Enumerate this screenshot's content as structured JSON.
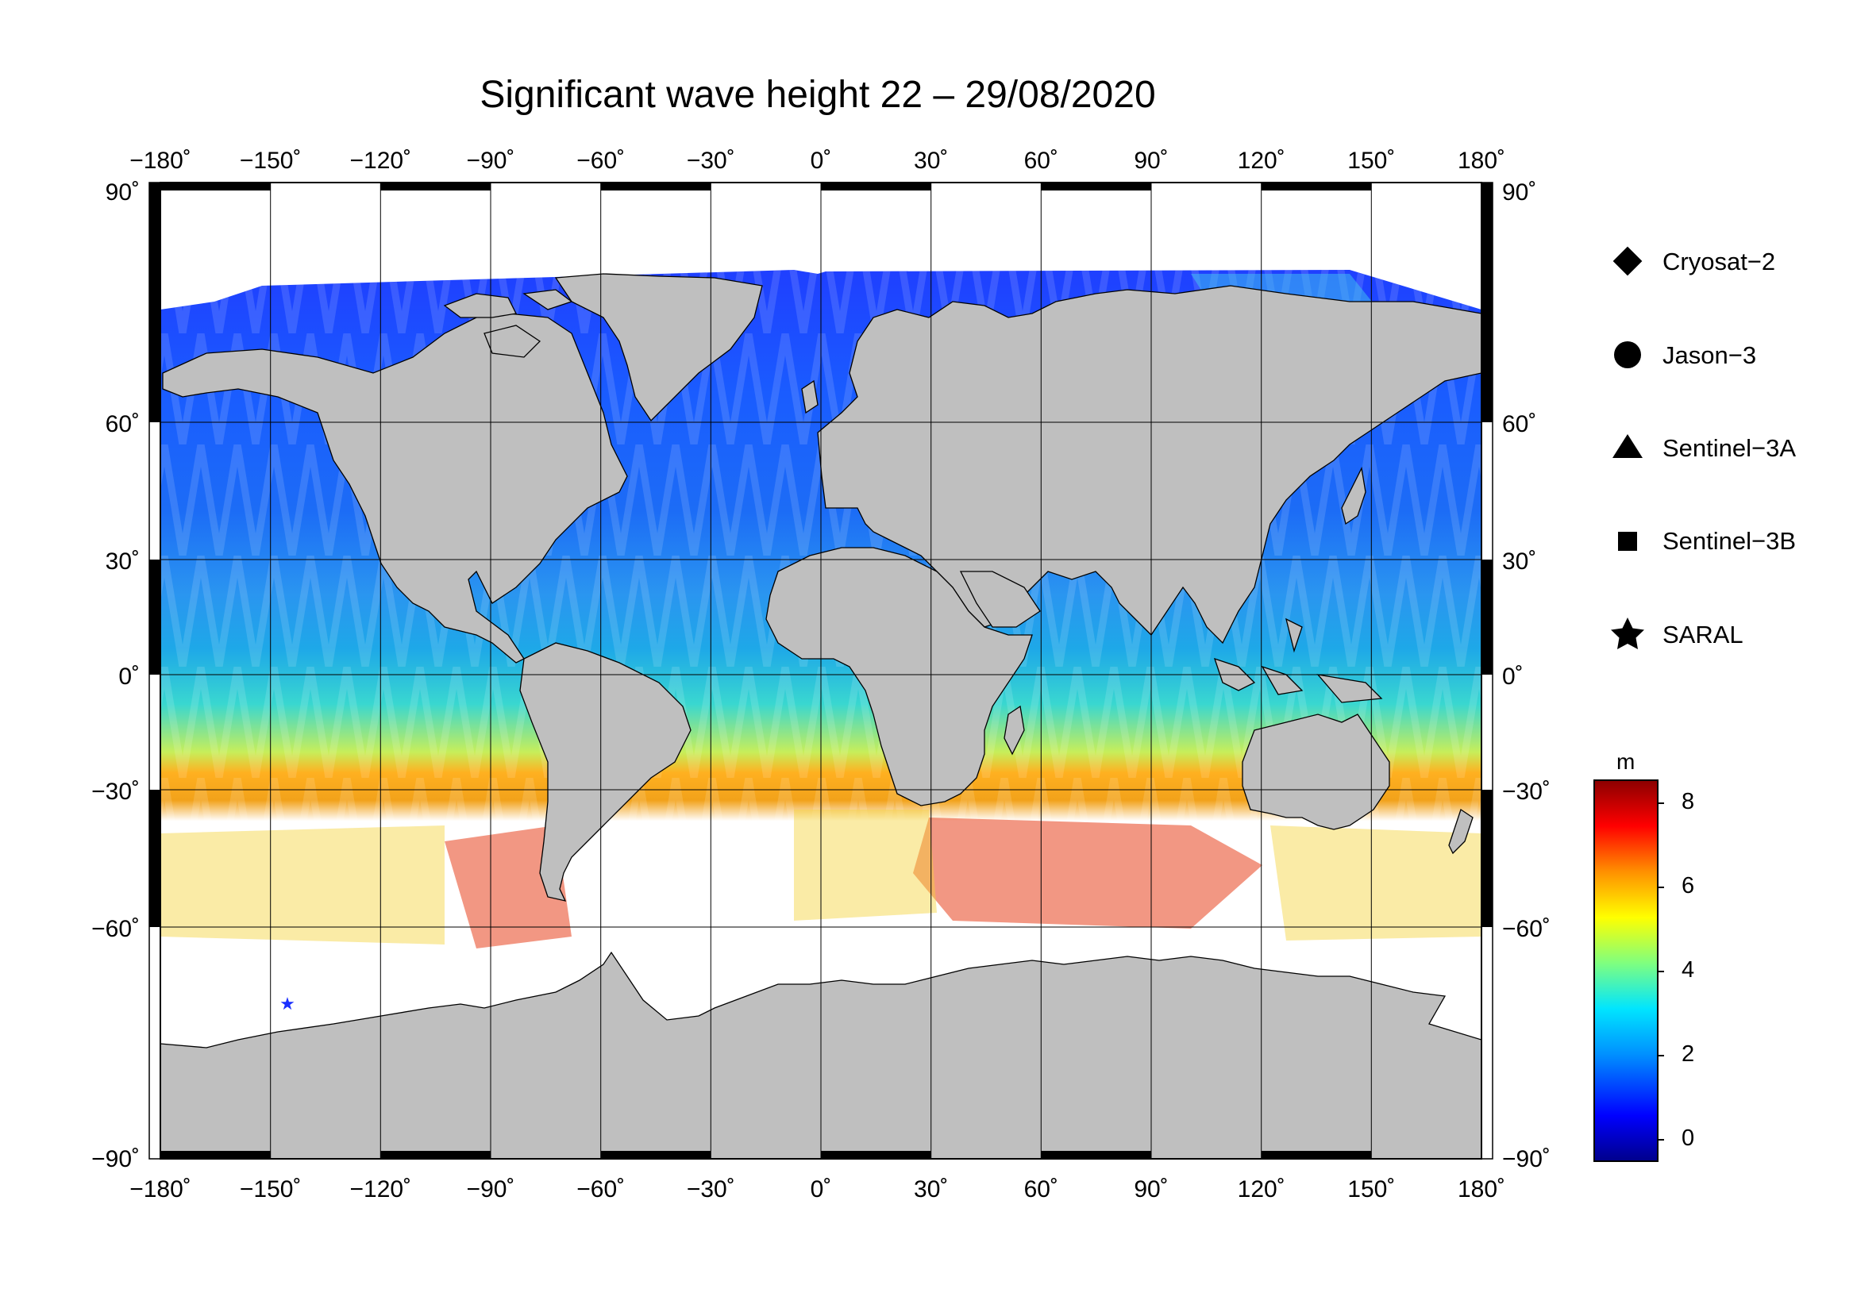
{
  "title": "Significant wave height 22 – 29/08/2020",
  "axes": {
    "lon_ticks": [
      "−180˚",
      "−150˚",
      "−120˚",
      "−90˚",
      "−60˚",
      "−30˚",
      "0˚",
      "30˚",
      "60˚",
      "90˚",
      "120˚",
      "150˚",
      "180˚"
    ],
    "lat_ticks": [
      "90˚",
      "60˚",
      "30˚",
      "0˚",
      "−30˚",
      "−60˚",
      "−90˚"
    ]
  },
  "legend": {
    "items": [
      {
        "label": "Cryosat−2",
        "marker": "diamond"
      },
      {
        "label": "Jason−3",
        "marker": "circle"
      },
      {
        "label": "Sentinel−3A",
        "marker": "triangle"
      },
      {
        "label": "Sentinel−3B",
        "marker": "square"
      },
      {
        "label": "SARAL",
        "marker": "star"
      }
    ]
  },
  "colorbar": {
    "unit": "m",
    "labels": [
      "8",
      "6",
      "4",
      "2",
      "0"
    ],
    "range": [
      -0.5,
      8.6
    ],
    "colors": [
      "#00008b",
      "#0000ff",
      "#0090ff",
      "#00e5ff",
      "#7fff7f",
      "#ffff00",
      "#ff9000",
      "#ff0000",
      "#8b0000"
    ]
  },
  "map": {
    "land_color": "#bfbfbf",
    "ice_color": "#ffffff"
  }
}
